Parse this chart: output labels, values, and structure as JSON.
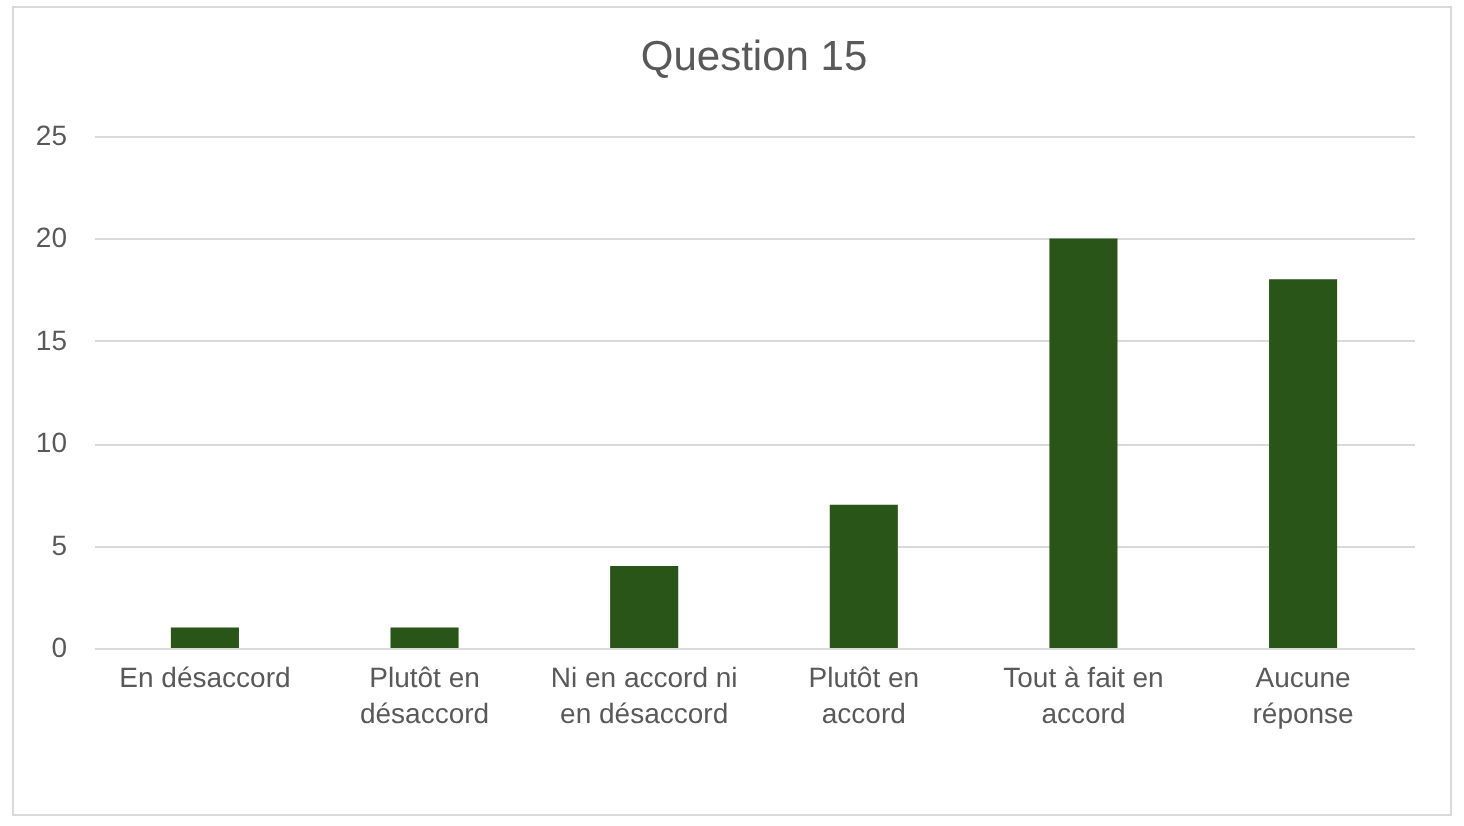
{
  "chart_data": {
    "type": "bar",
    "title": "Question 15",
    "categories": [
      "En désaccord",
      "Plutôt en désaccord",
      "Ni en accord ni en désaccord",
      "Plutôt en accord",
      "Tout à fait en accord",
      "Aucune réponse"
    ],
    "values": [
      1,
      1,
      4,
      7,
      20,
      18
    ],
    "color": "#2a5519",
    "ylim": [
      0,
      25
    ],
    "yticks": [
      0,
      5,
      10,
      15,
      20,
      25
    ],
    "grid": "y"
  }
}
